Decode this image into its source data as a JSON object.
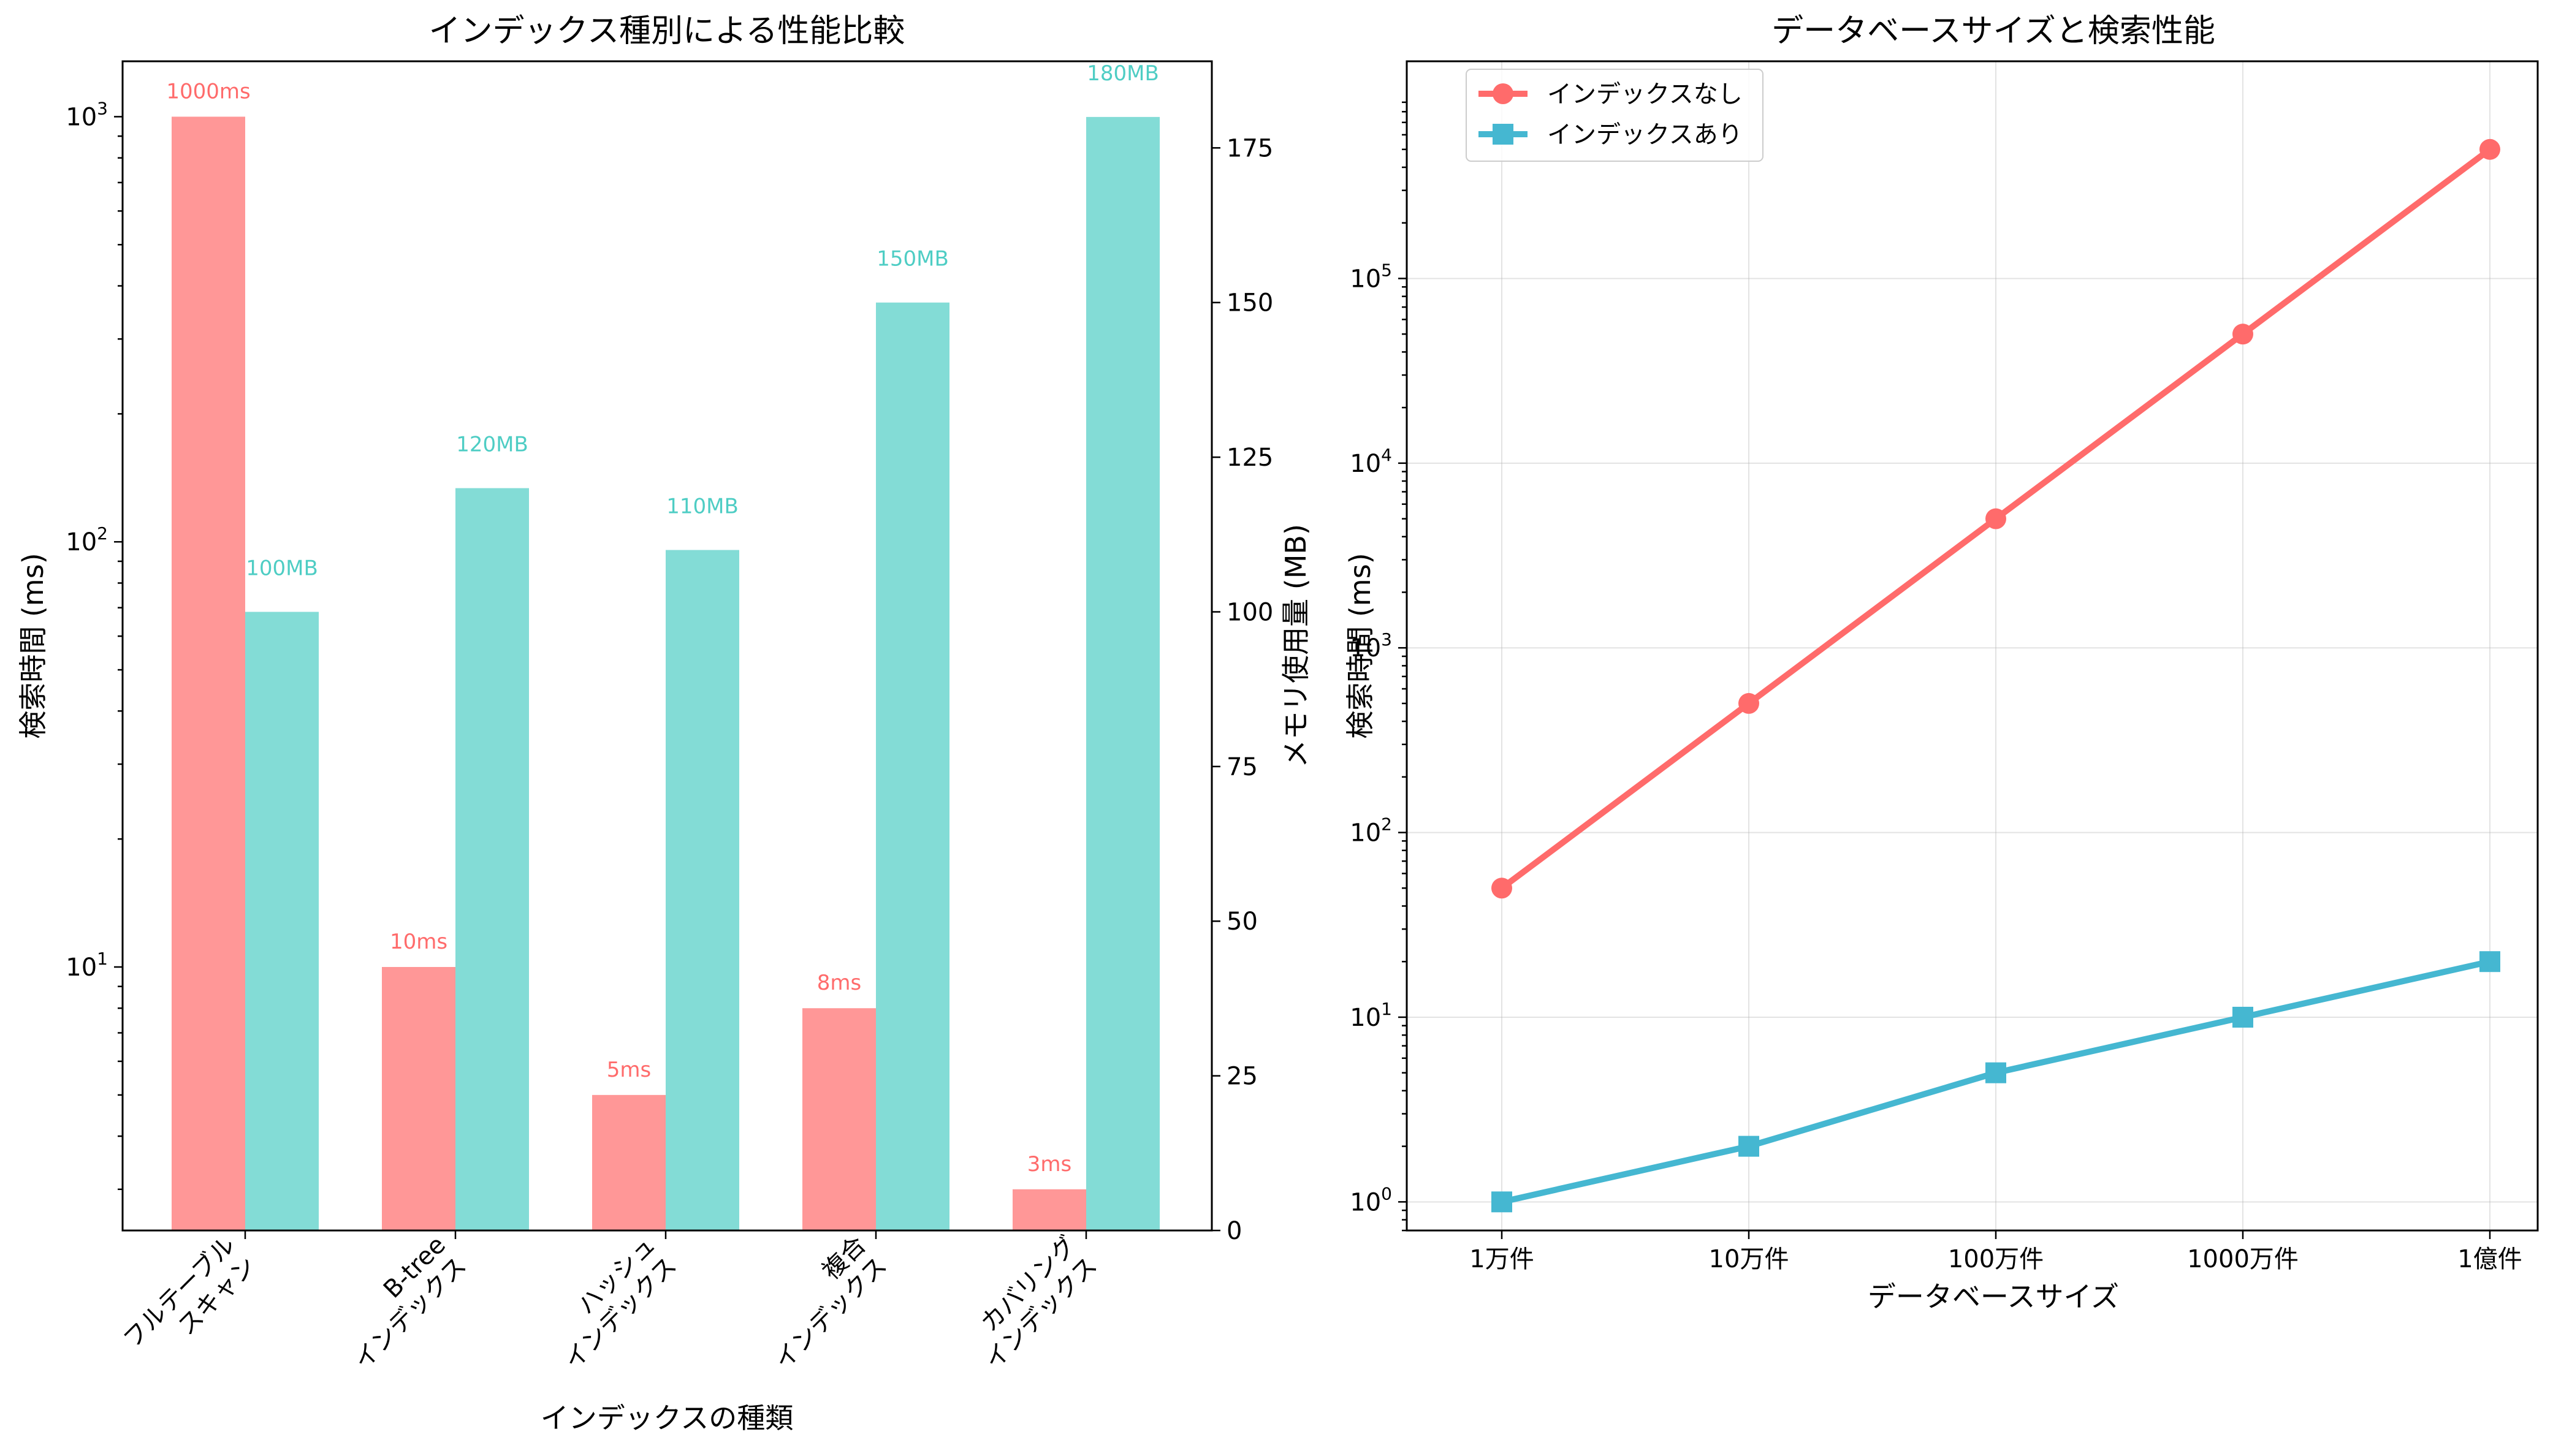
{
  "chart_data": [
    {
      "type": "bar",
      "title": "インデックス種別による性能比較",
      "xlabel": "インデックスの種類",
      "ylabel": "検索時間 (ms)",
      "y2label": "メモリ使用量 (MB)",
      "categories": [
        [
          "フルテーブル",
          "スキャン"
        ],
        [
          "B-tree",
          "インデックス"
        ],
        [
          "ハッシュ",
          "インデックス"
        ],
        [
          "複合",
          "インデックス"
        ],
        [
          "カバリング",
          "インデックス"
        ]
      ],
      "series": [
        {
          "name": "検索時間 (ms)",
          "axis": "left",
          "scale": "log",
          "color": "#ff6b6b",
          "values": [
            1000,
            10,
            5,
            8,
            3
          ],
          "labels": [
            "1000ms",
            "10ms",
            "5ms",
            "8ms",
            "3ms"
          ]
        },
        {
          "name": "メモリ使用量 (MB)",
          "axis": "right",
          "scale": "linear",
          "color": "#4ecdc4",
          "values": [
            100,
            120,
            110,
            150,
            180
          ],
          "labels": [
            "100MB",
            "120MB",
            "110MB",
            "150MB",
            "180MB"
          ]
        }
      ],
      "y_left": {
        "scale": "log",
        "ylim": [
          2.4,
          1350
        ],
        "ticks": [
          "10^1",
          "10^2",
          "10^3"
        ]
      },
      "y_right": {
        "scale": "linear",
        "ylim": [
          0,
          189
        ],
        "ticks": [
          "0",
          "25",
          "50",
          "75",
          "100",
          "125",
          "150",
          "175"
        ]
      },
      "grid": false
    },
    {
      "type": "line",
      "title": "データベースサイズと検索性能",
      "xlabel": "データベースサイズ",
      "ylabel": "検索時間 (ms)",
      "x": [
        "1万件",
        "10万件",
        "100万件",
        "1000万件",
        "1億件"
      ],
      "yscale": "log",
      "ylim": [
        0.7,
        1500000
      ],
      "y_ticks": [
        "10^0",
        "10^1",
        "10^2",
        "10^3",
        "10^4",
        "10^5"
      ],
      "series": [
        {
          "name": "インデックスなし",
          "color": "#ff6b6b",
          "marker": "circle",
          "values": [
            50,
            500,
            5000,
            50000,
            500000
          ]
        },
        {
          "name": "インデックスあり",
          "color": "#45b7d1",
          "marker": "square",
          "values": [
            1,
            2,
            5,
            10,
            20
          ]
        }
      ],
      "grid": true,
      "legend": "top-left"
    }
  ]
}
